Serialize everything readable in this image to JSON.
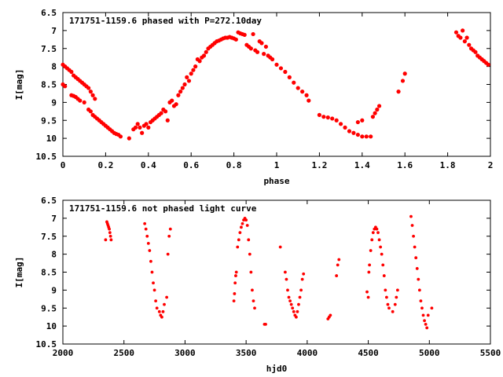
{
  "chart_data": [
    {
      "type": "scatter",
      "title": "171751-1159.6 phased with P=272.10day",
      "xlabel": "phase",
      "ylabel": "I[mag]",
      "xlim": [
        0,
        2
      ],
      "ylim": [
        10.5,
        6.5
      ],
      "y_inverted": true,
      "xticks": [
        "0",
        "0.2",
        "0.4",
        "0.6",
        "0.8",
        "1",
        "1.2",
        "1.4",
        "1.6",
        "1.8",
        "2"
      ],
      "yticks": [
        "6.5",
        "7",
        "7.5",
        "8",
        "8.5",
        "9",
        "9.5",
        "10",
        "10.5"
      ],
      "marker_color": "#ff0000",
      "series": [
        {
          "points": [
            [
              0.0,
              7.95
            ],
            [
              0.01,
              8.0
            ],
            [
              0.02,
              8.05
            ],
            [
              0.03,
              8.1
            ],
            [
              0.04,
              8.15
            ],
            [
              0.05,
              8.25
            ],
            [
              0.06,
              8.3
            ],
            [
              0.07,
              8.35
            ],
            [
              0.08,
              8.4
            ],
            [
              0.09,
              8.45
            ],
            [
              0.1,
              8.5
            ],
            [
              0.11,
              8.55
            ],
            [
              0.12,
              8.6
            ],
            [
              0.13,
              8.7
            ],
            [
              0.14,
              8.8
            ],
            [
              0.15,
              8.9
            ],
            [
              0.0,
              8.5
            ],
            [
              0.01,
              8.55
            ],
            [
              0.04,
              8.8
            ],
            [
              0.05,
              8.82
            ],
            [
              0.06,
              8.85
            ],
            [
              0.07,
              8.9
            ],
            [
              0.08,
              8.95
            ],
            [
              0.1,
              9.0
            ],
            [
              0.12,
              9.2
            ],
            [
              0.13,
              9.25
            ],
            [
              0.14,
              9.35
            ],
            [
              0.15,
              9.4
            ],
            [
              0.16,
              9.45
            ],
            [
              0.17,
              9.5
            ],
            [
              0.18,
              9.55
            ],
            [
              0.19,
              9.6
            ],
            [
              0.2,
              9.65
            ],
            [
              0.21,
              9.7
            ],
            [
              0.22,
              9.75
            ],
            [
              0.23,
              9.8
            ],
            [
              0.24,
              9.85
            ],
            [
              0.25,
              9.88
            ],
            [
              0.26,
              9.9
            ],
            [
              0.27,
              9.95
            ],
            [
              0.31,
              10.0
            ],
            [
              0.33,
              9.75
            ],
            [
              0.34,
              9.7
            ],
            [
              0.35,
              9.6
            ],
            [
              0.36,
              9.7
            ],
            [
              0.37,
              9.85
            ],
            [
              0.38,
              9.65
            ],
            [
              0.39,
              9.6
            ],
            [
              0.4,
              9.7
            ],
            [
              0.41,
              9.55
            ],
            [
              0.42,
              9.5
            ],
            [
              0.43,
              9.45
            ],
            [
              0.44,
              9.4
            ],
            [
              0.45,
              9.35
            ],
            [
              0.46,
              9.3
            ],
            [
              0.47,
              9.2
            ],
            [
              0.48,
              9.25
            ],
            [
              0.49,
              9.5
            ],
            [
              0.5,
              9.0
            ],
            [
              0.51,
              8.95
            ],
            [
              0.52,
              9.1
            ],
            [
              0.53,
              9.05
            ],
            [
              0.54,
              8.8
            ],
            [
              0.55,
              8.7
            ],
            [
              0.56,
              8.6
            ],
            [
              0.57,
              8.5
            ],
            [
              0.58,
              8.3
            ],
            [
              0.59,
              8.4
            ],
            [
              0.6,
              8.2
            ],
            [
              0.61,
              8.1
            ],
            [
              0.62,
              8.0
            ],
            [
              0.63,
              7.8
            ],
            [
              0.64,
              7.85
            ],
            [
              0.65,
              7.75
            ],
            [
              0.66,
              7.7
            ],
            [
              0.67,
              7.6
            ],
            [
              0.68,
              7.5
            ],
            [
              0.69,
              7.45
            ],
            [
              0.7,
              7.4
            ],
            [
              0.71,
              7.35
            ],
            [
              0.72,
              7.3
            ],
            [
              0.73,
              7.28
            ],
            [
              0.74,
              7.25
            ],
            [
              0.75,
              7.22
            ],
            [
              0.76,
              7.2
            ],
            [
              0.77,
              7.2
            ],
            [
              0.78,
              7.18
            ],
            [
              0.79,
              7.2
            ],
            [
              0.8,
              7.22
            ],
            [
              0.81,
              7.25
            ],
            [
              0.82,
              7.05
            ],
            [
              0.83,
              7.08
            ],
            [
              0.84,
              7.1
            ],
            [
              0.85,
              7.12
            ],
            [
              0.86,
              7.4
            ],
            [
              0.87,
              7.45
            ],
            [
              0.88,
              7.5
            ],
            [
              0.89,
              7.1
            ],
            [
              0.9,
              7.55
            ],
            [
              0.91,
              7.6
            ],
            [
              0.92,
              7.3
            ],
            [
              0.93,
              7.35
            ],
            [
              0.94,
              7.65
            ],
            [
              0.95,
              7.45
            ],
            [
              0.96,
              7.7
            ],
            [
              0.97,
              7.75
            ],
            [
              0.98,
              7.8
            ],
            [
              1.0,
              7.95
            ],
            [
              1.02,
              8.05
            ],
            [
              1.04,
              8.15
            ],
            [
              1.06,
              8.3
            ],
            [
              1.08,
              8.45
            ],
            [
              1.1,
              8.6
            ],
            [
              1.12,
              8.7
            ],
            [
              1.14,
              8.8
            ],
            [
              1.15,
              8.95
            ],
            [
              1.2,
              9.35
            ],
            [
              1.22,
              9.4
            ],
            [
              1.24,
              9.42
            ],
            [
              1.26,
              9.45
            ],
            [
              1.28,
              9.5
            ],
            [
              1.3,
              9.6
            ],
            [
              1.32,
              9.7
            ],
            [
              1.34,
              9.8
            ],
            [
              1.36,
              9.85
            ],
            [
              1.38,
              9.9
            ],
            [
              1.4,
              9.95
            ],
            [
              1.42,
              9.95
            ],
            [
              1.44,
              9.95
            ],
            [
              1.45,
              9.4
            ],
            [
              1.46,
              9.3
            ],
            [
              1.47,
              9.2
            ],
            [
              1.48,
              9.1
            ],
            [
              1.38,
              9.55
            ],
            [
              1.4,
              9.5
            ],
            [
              1.57,
              8.7
            ],
            [
              1.59,
              8.4
            ],
            [
              1.6,
              8.2
            ],
            [
              1.84,
              7.05
            ],
            [
              1.85,
              7.15
            ],
            [
              1.86,
              7.2
            ],
            [
              1.87,
              7.0
            ],
            [
              1.88,
              7.3
            ],
            [
              1.89,
              7.2
            ],
            [
              1.9,
              7.4
            ],
            [
              1.91,
              7.5
            ],
            [
              1.92,
              7.55
            ],
            [
              1.93,
              7.6
            ],
            [
              1.94,
              7.7
            ],
            [
              1.95,
              7.75
            ],
            [
              1.96,
              7.8
            ],
            [
              1.97,
              7.85
            ],
            [
              1.98,
              7.9
            ],
            [
              1.99,
              7.95
            ]
          ]
        }
      ]
    },
    {
      "type": "scatter",
      "title": "171751-1159.6 not phased light curve",
      "xlabel": "hjd0",
      "ylabel": "I[mag]",
      "xlim": [
        2000,
        5500
      ],
      "ylim": [
        10.5,
        6.5
      ],
      "y_inverted": true,
      "xticks": [
        "2000",
        "2500",
        "3000",
        "3500",
        "4000",
        "4500",
        "5000",
        "5500"
      ],
      "yticks": [
        "6.5",
        "7",
        "7.5",
        "8",
        "8.5",
        "9",
        "9.5",
        "10",
        "10.5"
      ],
      "marker_color": "#ff0000",
      "series": [
        {
          "points": [
            [
              2350,
              7.6
            ],
            [
              2360,
              7.1
            ],
            [
              2365,
              7.15
            ],
            [
              2370,
              7.2
            ],
            [
              2375,
              7.25
            ],
            [
              2380,
              7.3
            ],
            [
              2385,
              7.4
            ],
            [
              2390,
              7.5
            ],
            [
              2395,
              7.6
            ],
            [
              2670,
              7.15
            ],
            [
              2680,
              7.3
            ],
            [
              2690,
              7.5
            ],
            [
              2700,
              7.7
            ],
            [
              2710,
              7.9
            ],
            [
              2720,
              8.2
            ],
            [
              2730,
              8.5
            ],
            [
              2740,
              8.8
            ],
            [
              2750,
              9.0
            ],
            [
              2760,
              9.3
            ],
            [
              2770,
              9.5
            ],
            [
              2790,
              9.6
            ],
            [
              2800,
              9.7
            ],
            [
              2810,
              9.75
            ],
            [
              2820,
              9.6
            ],
            [
              2830,
              9.4
            ],
            [
              2850,
              9.2
            ],
            [
              2860,
              8.0
            ],
            [
              2870,
              7.5
            ],
            [
              2880,
              7.3
            ],
            [
              3400,
              9.3
            ],
            [
              3405,
              9.1
            ],
            [
              3410,
              8.8
            ],
            [
              3415,
              8.6
            ],
            [
              3420,
              8.5
            ],
            [
              3430,
              7.8
            ],
            [
              3440,
              7.6
            ],
            [
              3450,
              7.4
            ],
            [
              3460,
              7.25
            ],
            [
              3470,
              7.15
            ],
            [
              3480,
              7.05
            ],
            [
              3490,
              7.0
            ],
            [
              3500,
              7.05
            ],
            [
              3510,
              7.2
            ],
            [
              3520,
              7.6
            ],
            [
              3530,
              8.0
            ],
            [
              3540,
              8.5
            ],
            [
              3550,
              9.0
            ],
            [
              3560,
              9.3
            ],
            [
              3570,
              9.5
            ],
            [
              3650,
              9.95
            ],
            [
              3660,
              9.95
            ],
            [
              3780,
              7.8
            ],
            [
              3820,
              8.5
            ],
            [
              3830,
              8.7
            ],
            [
              3840,
              9.0
            ],
            [
              3850,
              9.2
            ],
            [
              3860,
              9.3
            ],
            [
              3870,
              9.4
            ],
            [
              3880,
              9.5
            ],
            [
              3890,
              9.6
            ],
            [
              3900,
              9.7
            ],
            [
              3910,
              9.75
            ],
            [
              3920,
              9.6
            ],
            [
              3930,
              9.4
            ],
            [
              3940,
              9.2
            ],
            [
              3950,
              9.0
            ],
            [
              3960,
              8.7
            ],
            [
              3970,
              8.55
            ],
            [
              4170,
              9.8
            ],
            [
              4180,
              9.75
            ],
            [
              4190,
              9.7
            ],
            [
              4240,
              8.6
            ],
            [
              4250,
              8.3
            ],
            [
              4260,
              8.15
            ],
            [
              4490,
              9.05
            ],
            [
              4500,
              9.2
            ],
            [
              4505,
              8.5
            ],
            [
              4510,
              8.3
            ],
            [
              4520,
              7.9
            ],
            [
              4530,
              7.6
            ],
            [
              4540,
              7.4
            ],
            [
              4550,
              7.3
            ],
            [
              4560,
              7.25
            ],
            [
              4570,
              7.3
            ],
            [
              4580,
              7.4
            ],
            [
              4590,
              7.6
            ],
            [
              4600,
              7.8
            ],
            [
              4610,
              8.0
            ],
            [
              4620,
              8.3
            ],
            [
              4630,
              8.6
            ],
            [
              4640,
              9.0
            ],
            [
              4650,
              9.2
            ],
            [
              4660,
              9.4
            ],
            [
              4670,
              9.5
            ],
            [
              4700,
              9.6
            ],
            [
              4720,
              9.4
            ],
            [
              4730,
              9.2
            ],
            [
              4740,
              9.0
            ],
            [
              4850,
              6.95
            ],
            [
              4860,
              7.2
            ],
            [
              4870,
              7.5
            ],
            [
              4880,
              7.8
            ],
            [
              4890,
              8.1
            ],
            [
              4900,
              8.4
            ],
            [
              4910,
              8.7
            ],
            [
              4920,
              9.0
            ],
            [
              4930,
              9.3
            ],
            [
              4940,
              9.5
            ],
            [
              4950,
              9.7
            ],
            [
              4960,
              9.85
            ],
            [
              4970,
              9.95
            ],
            [
              4980,
              10.05
            ],
            [
              4990,
              9.7
            ],
            [
              5020,
              9.5
            ]
          ]
        }
      ]
    }
  ]
}
